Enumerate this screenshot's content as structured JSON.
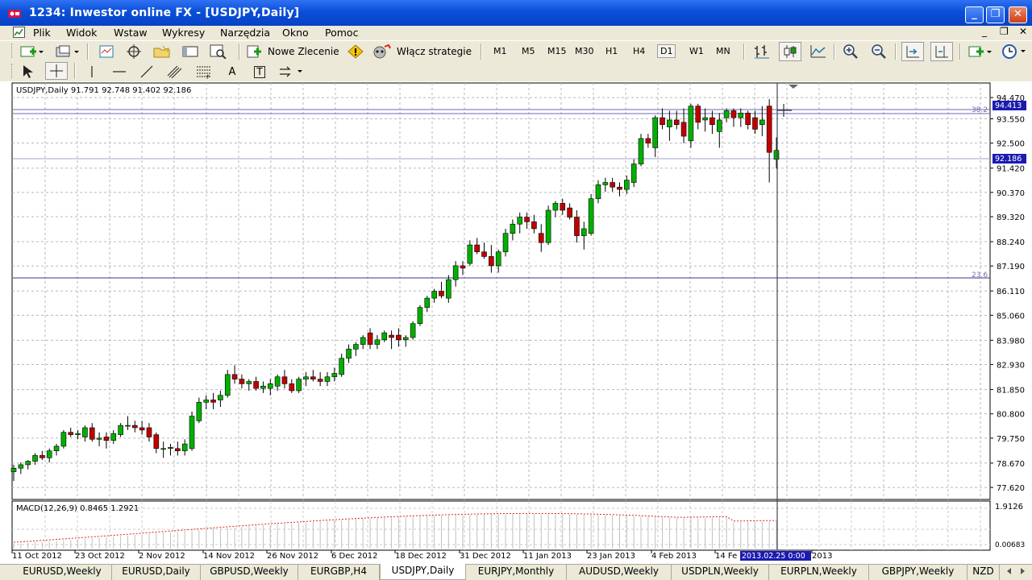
{
  "window": {
    "title": "1234: Inwestor online FX - [USDJPY,Daily]",
    "min_label": "_",
    "max_label": "❐",
    "close_label": "✕"
  },
  "menu": {
    "items": [
      "Plik",
      "Widok",
      "Wstaw",
      "Wykresy",
      "Narzędzia",
      "Okno",
      "Pomoc"
    ],
    "mdi_min": "_",
    "mdi_restore": "❐",
    "mdi_close": "✕"
  },
  "toolbar": {
    "new_order_label": "Nowe Zlecenie",
    "strategies_label": "Włącz strategie",
    "timeframes": [
      "M1",
      "M5",
      "M15",
      "M30",
      "H1",
      "H4",
      "D1",
      "W1",
      "MN"
    ],
    "active_timeframe": "D1",
    "text_tool": "A",
    "label_tool": "T"
  },
  "chart": {
    "info_line": "USDJPY,Daily  91.791 92.748 91.402 92.186",
    "macd_label": "MACD(12,26,9) 0.8465 1.2921",
    "macd_top": "1.9126",
    "macd_bottom": "0.00683",
    "fib_upper_label": "38.2",
    "fib_lower_label": "23.6",
    "current_price_label": "92.186",
    "cursor_price_label": "94.413",
    "cursor_date_label": "2013.02.25 0:00",
    "bull_color": "#00b000",
    "bear_color": "#c00000"
  },
  "chart_data": {
    "type": "candlestick",
    "symbol": "USDJPY",
    "timeframe": "Daily",
    "ylim": [
      77.1,
      95.1
    ],
    "price_ticks": [
      "94.470",
      "93.550",
      "92.500",
      "91.420",
      "90.370",
      "89.320",
      "88.240",
      "87.190",
      "86.110",
      "85.060",
      "83.980",
      "82.930",
      "81.850",
      "80.800",
      "79.750",
      "78.670",
      "77.620"
    ],
    "date_ticks": [
      "11 Oct 2012",
      "23 Oct 2012",
      "2 Nov 2012",
      "14 Nov 2012",
      "26 Nov 2012",
      "6 Dec 2012",
      "18 Dec 2012",
      "31 Dec 2012",
      "11 Jan 2013",
      "23 Jan 2013",
      "4 Feb 2013",
      "14 Fe",
      "2013"
    ],
    "ohlc": [
      [
        78.3,
        78.6,
        77.9,
        78.45
      ],
      [
        78.45,
        78.7,
        78.2,
        78.6
      ],
      [
        78.6,
        78.8,
        78.4,
        78.75
      ],
      [
        78.75,
        79.1,
        78.6,
        79.0
      ],
      [
        79.0,
        79.2,
        78.8,
        78.9
      ],
      [
        78.9,
        79.3,
        78.7,
        79.2
      ],
      [
        79.2,
        79.5,
        79.0,
        79.4
      ],
      [
        79.4,
        80.1,
        79.3,
        80.0
      ],
      [
        80.0,
        80.2,
        79.8,
        79.9
      ],
      [
        79.9,
        80.1,
        79.7,
        79.95
      ],
      [
        79.8,
        80.3,
        79.6,
        80.2
      ],
      [
        80.2,
        80.4,
        79.6,
        79.7
      ],
      [
        79.7,
        80.0,
        79.4,
        79.75
      ],
      [
        79.8,
        80.0,
        79.3,
        79.65
      ],
      [
        79.65,
        80.1,
        79.5,
        79.95
      ],
      [
        79.9,
        80.4,
        79.8,
        80.3
      ],
      [
        80.3,
        80.7,
        80.1,
        80.3
      ],
      [
        80.3,
        80.5,
        80.0,
        80.2
      ],
      [
        80.2,
        80.5,
        79.9,
        80.1
      ],
      [
        80.2,
        80.4,
        79.6,
        79.8
      ],
      [
        79.9,
        80.0,
        79.1,
        79.3
      ],
      [
        79.3,
        79.6,
        78.9,
        79.3
      ],
      [
        79.3,
        79.5,
        79.0,
        79.35
      ],
      [
        79.3,
        79.6,
        79.0,
        79.2
      ],
      [
        79.2,
        79.7,
        79.0,
        79.5
      ],
      [
        79.3,
        80.9,
        79.2,
        80.7
      ],
      [
        80.5,
        81.5,
        80.4,
        81.3
      ],
      [
        81.3,
        81.6,
        81.0,
        81.4
      ],
      [
        81.4,
        81.7,
        81.0,
        81.3
      ],
      [
        81.4,
        81.8,
        81.1,
        81.6
      ],
      [
        81.6,
        82.7,
        81.5,
        82.5
      ],
      [
        82.5,
        82.9,
        82.1,
        82.3
      ],
      [
        82.3,
        82.5,
        81.9,
        82.1
      ],
      [
        82.1,
        82.3,
        81.8,
        82.2
      ],
      [
        82.2,
        82.4,
        81.8,
        81.9
      ],
      [
        81.9,
        82.2,
        81.7,
        82.0
      ],
      [
        81.9,
        82.3,
        81.6,
        82.1
      ],
      [
        82.0,
        82.5,
        81.8,
        82.4
      ],
      [
        82.4,
        82.7,
        81.9,
        82.1
      ],
      [
        82.1,
        82.3,
        81.7,
        81.8
      ],
      [
        81.8,
        82.4,
        81.7,
        82.3
      ],
      [
        82.3,
        82.6,
        82.0,
        82.4
      ],
      [
        82.4,
        82.7,
        82.2,
        82.3
      ],
      [
        82.3,
        82.6,
        82.0,
        82.2
      ],
      [
        82.2,
        82.6,
        82.0,
        82.4
      ],
      [
        82.4,
        82.8,
        82.2,
        82.55
      ],
      [
        82.5,
        83.4,
        82.4,
        83.2
      ],
      [
        83.2,
        83.8,
        83.0,
        83.6
      ],
      [
        83.6,
        83.9,
        83.3,
        83.8
      ],
      [
        83.8,
        84.2,
        83.6,
        84.1
      ],
      [
        84.3,
        84.5,
        83.6,
        83.8
      ],
      [
        83.8,
        84.2,
        83.6,
        84.0
      ],
      [
        84.0,
        84.4,
        83.9,
        84.3
      ],
      [
        84.2,
        84.4,
        83.6,
        84.1
      ],
      [
        84.2,
        84.5,
        83.7,
        84.0
      ],
      [
        84.0,
        84.2,
        83.7,
        84.1
      ],
      [
        84.1,
        84.8,
        84.0,
        84.7
      ],
      [
        84.7,
        85.5,
        84.6,
        85.4
      ],
      [
        85.4,
        85.9,
        85.2,
        85.8
      ],
      [
        85.8,
        86.2,
        85.6,
        86.1
      ],
      [
        86.1,
        86.5,
        85.8,
        85.9
      ],
      [
        85.8,
        86.8,
        85.6,
        86.6
      ],
      [
        86.6,
        87.4,
        86.3,
        87.2
      ],
      [
        87.2,
        87.4,
        86.8,
        87.1
      ],
      [
        87.3,
        88.3,
        87.2,
        88.1
      ],
      [
        88.1,
        88.4,
        87.7,
        87.8
      ],
      [
        87.8,
        88.2,
        87.5,
        87.6
      ],
      [
        87.6,
        88.1,
        86.9,
        87.2
      ],
      [
        87.2,
        87.9,
        86.9,
        87.8
      ],
      [
        87.8,
        88.8,
        87.6,
        88.6
      ],
      [
        88.6,
        89.2,
        88.3,
        89.0
      ],
      [
        89.0,
        89.5,
        88.6,
        89.3
      ],
      [
        89.3,
        89.5,
        88.8,
        89.1
      ],
      [
        89.1,
        89.4,
        88.6,
        88.8
      ],
      [
        88.6,
        89.0,
        87.8,
        88.2
      ],
      [
        88.2,
        89.8,
        88.1,
        89.6
      ],
      [
        89.6,
        90.0,
        89.3,
        89.9
      ],
      [
        89.9,
        90.1,
        89.4,
        89.6
      ],
      [
        89.7,
        89.9,
        89.2,
        89.3
      ],
      [
        89.3,
        89.6,
        88.2,
        88.5
      ],
      [
        88.5,
        89.1,
        87.9,
        88.8
      ],
      [
        88.6,
        90.3,
        88.5,
        90.1
      ],
      [
        90.1,
        90.9,
        89.9,
        90.7
      ],
      [
        90.7,
        91.0,
        90.4,
        90.8
      ],
      [
        90.8,
        91.0,
        90.4,
        90.6
      ],
      [
        90.6,
        90.8,
        90.2,
        90.5
      ],
      [
        90.5,
        91.1,
        90.3,
        90.9
      ],
      [
        90.8,
        91.8,
        90.6,
        91.6
      ],
      [
        91.6,
        92.9,
        91.5,
        92.7
      ],
      [
        92.7,
        92.9,
        92.3,
        92.5
      ],
      [
        92.3,
        93.7,
        91.9,
        93.6
      ],
      [
        93.6,
        94.0,
        93.1,
        93.3
      ],
      [
        93.2,
        93.9,
        92.6,
        93.5
      ],
      [
        93.5,
        93.9,
        93.1,
        93.3
      ],
      [
        93.4,
        94.0,
        92.5,
        92.8
      ],
      [
        92.6,
        94.2,
        92.3,
        94.1
      ],
      [
        94.1,
        94.2,
        93.1,
        93.4
      ],
      [
        93.5,
        94.0,
        93.0,
        93.6
      ],
      [
        93.6,
        93.9,
        92.9,
        93.3
      ],
      [
        93.0,
        93.8,
        92.3,
        93.5
      ],
      [
        93.6,
        94.0,
        93.4,
        93.9
      ],
      [
        93.9,
        94.0,
        93.2,
        93.6
      ],
      [
        93.6,
        94.0,
        93.2,
        93.8
      ],
      [
        93.8,
        93.9,
        93.1,
        93.3
      ],
      [
        93.6,
        93.9,
        92.9,
        93.1
      ],
      [
        93.3,
        94.1,
        92.8,
        93.5
      ],
      [
        94.1,
        94.4,
        90.8,
        92.1
      ],
      [
        91.8,
        92.75,
        91.4,
        92.186
      ]
    ]
  },
  "tabs": [
    "EURUSD,Weekly",
    "EURUSD,Daily",
    "GBPUSD,Weekly",
    "EURGBP,H4",
    "USDJPY,Daily",
    "EURJPY,Monthly",
    "AUDUSD,Weekly",
    "USDPLN,Weekly",
    "EURPLN,Weekly",
    "GBPJPY,Weekly",
    "NZD"
  ],
  "active_tab": "USDJPY,Daily"
}
